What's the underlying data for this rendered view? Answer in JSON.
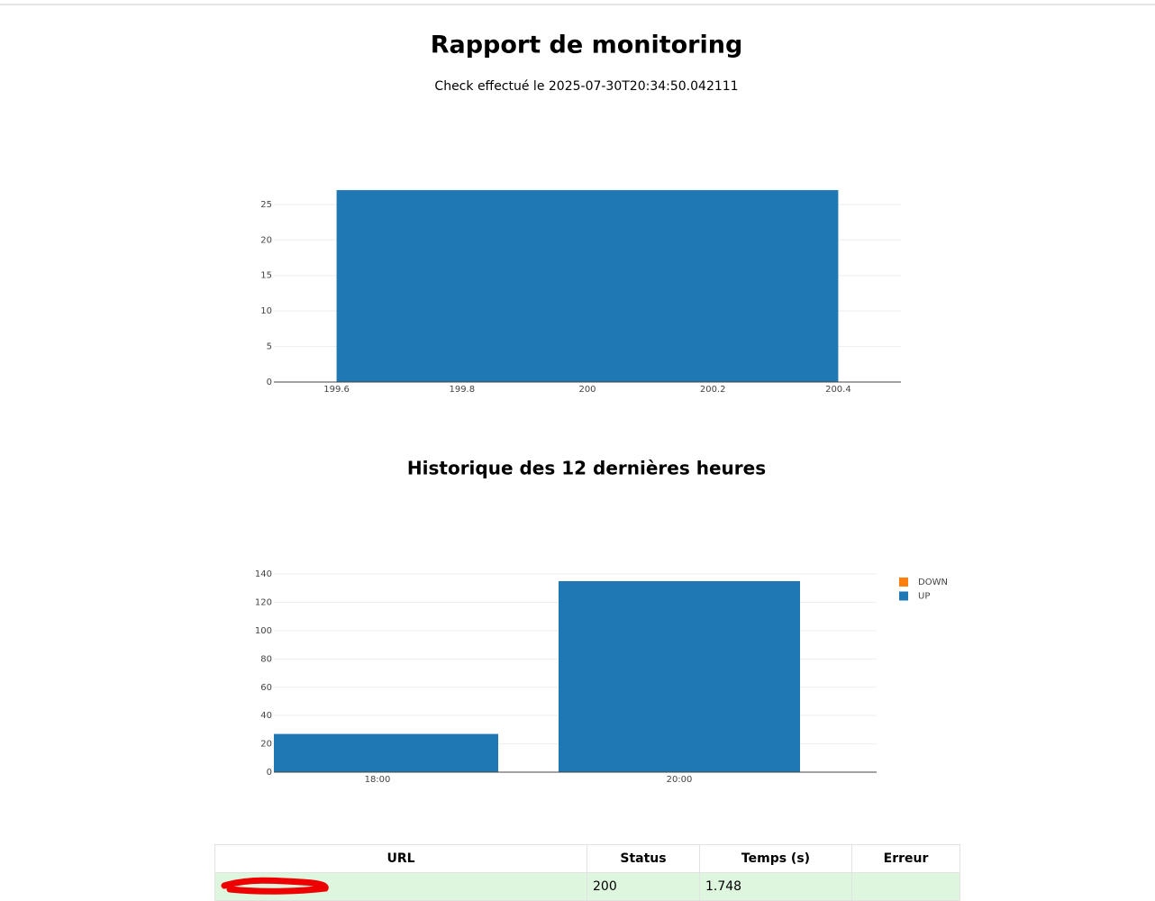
{
  "header": {
    "title": "Rapport de monitoring",
    "subtitle": "Check effectué le 2025-07-30T20:34:50.042111"
  },
  "charts": [
    {
      "chart_data": {
        "type": "histogram",
        "bins": [
          199.6,
          200.4
        ],
        "values": [
          27
        ],
        "color": "#1f77b4",
        "xlim": [
          199.5,
          200.5
        ],
        "xticks": [
          199.6,
          199.8,
          200,
          200.2,
          200.4
        ],
        "ylim": [
          0,
          28.4
        ],
        "yticks": [
          0,
          5,
          10,
          15,
          20,
          25
        ],
        "grid": true
      }
    },
    {
      "chart_data": {
        "type": "stacked-bar",
        "title": "Historique des 12 dernières heures",
        "categories": [
          "18:00",
          "20:00"
        ],
        "series": [
          {
            "name": "UP",
            "color": "#1f77b4",
            "values": [
              27,
              135
            ]
          },
          {
            "name": "DOWN",
            "color": "#ff7f0e",
            "values": [
              0,
              0
            ]
          }
        ],
        "ylim": [
          0,
          142
        ],
        "yticks": [
          0,
          20,
          40,
          60,
          80,
          100,
          120,
          140
        ],
        "grid": true,
        "legend": "top-right"
      }
    }
  ],
  "table": {
    "columns": [
      "URL",
      "Status",
      "Temps (s)",
      "Erreur"
    ],
    "rows": [
      {
        "status": "200",
        "time": "1.748"
      }
    ]
  }
}
